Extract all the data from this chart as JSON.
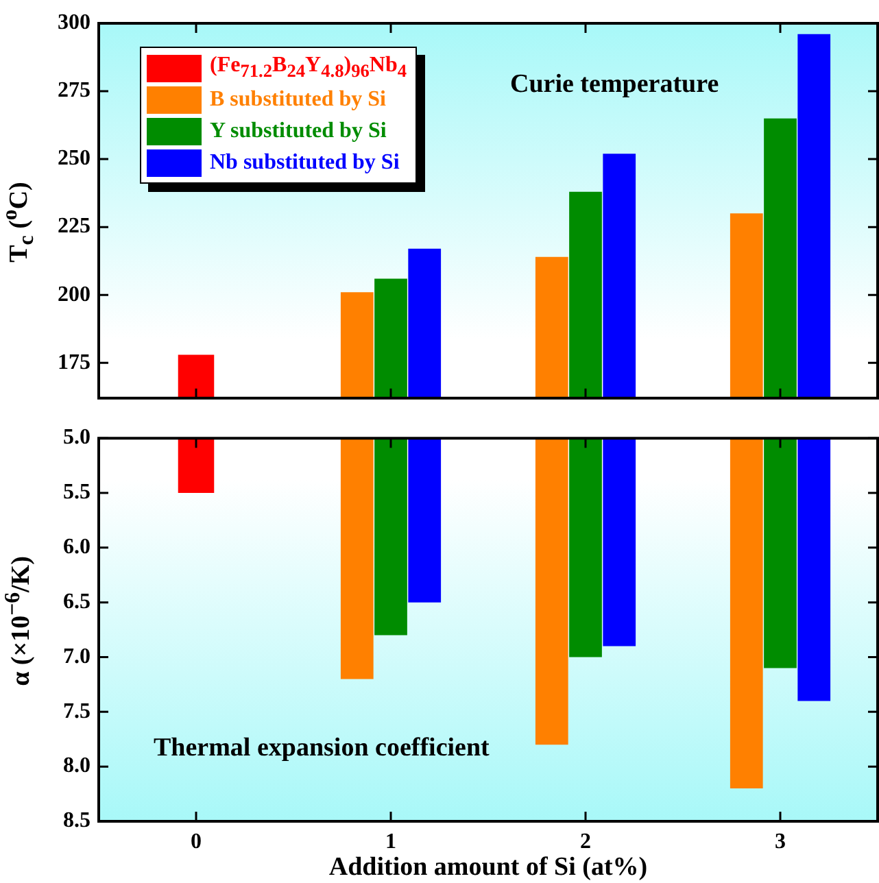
{
  "chart_data": [
    {
      "type": "bar",
      "ylabel": "T$_{c}$ ($^{o}$C)",
      "categories": [
        "0",
        "1",
        "2",
        "3"
      ],
      "series": [
        {
          "name": "(Fe$_{71.2}$B$_{24}$Y$_{4.8}$)$_{96}$Nb$_{4}$",
          "color": "#ff0000",
          "values": [
            178,
            null,
            null,
            null
          ]
        },
        {
          "name": "B substituted by Si",
          "color": "#ff8000",
          "values": [
            null,
            201,
            214,
            230
          ]
        },
        {
          "name": "Y substituted by Si",
          "color": "#008c00",
          "values": [
            null,
            206,
            238,
            265
          ]
        },
        {
          "name": "Nb substituted by Si",
          "color": "#0000ff",
          "values": [
            null,
            217,
            252,
            296
          ]
        }
      ],
      "ylim": [
        162,
        300
      ],
      "yticks": [
        175,
        200,
        225,
        250,
        275,
        300
      ],
      "grid": false,
      "legend": "top left",
      "tick_labels": "y",
      "annotations": [
        "Curie temperature"
      ]
    },
    {
      "type": "bar",
      "xlabel": "Addition amount of Si (at%)",
      "ylabel": "α (×10$^{−6}$/K)",
      "categories": [
        "0",
        "1",
        "2",
        "3"
      ],
      "series": [
        {
          "color": "#ff0000",
          "values": [
            5.5,
            null,
            null,
            null
          ]
        },
        {
          "color": "#ff8000",
          "values": [
            null,
            7.2,
            7.8,
            8.2
          ]
        },
        {
          "color": "#008c00",
          "values": [
            null,
            6.8,
            7.0,
            7.1
          ]
        },
        {
          "color": "#0000ff",
          "values": [
            null,
            6.5,
            6.9,
            7.4
          ]
        }
      ],
      "ylim": [
        8.5,
        5.0
      ],
      "yticks": [
        {
          "value": 5,
          "label": "5.0"
        },
        5.5,
        {
          "value": 6,
          "label": "6.0"
        },
        6.5,
        {
          "value": 7,
          "label": "7.0"
        },
        7.5,
        {
          "value": 8,
          "label": "8.0"
        },
        8.5
      ],
      "grid": false,
      "legend": false,
      "annotations": [
        "Thermal expansion coefficient"
      ]
    }
  ]
}
